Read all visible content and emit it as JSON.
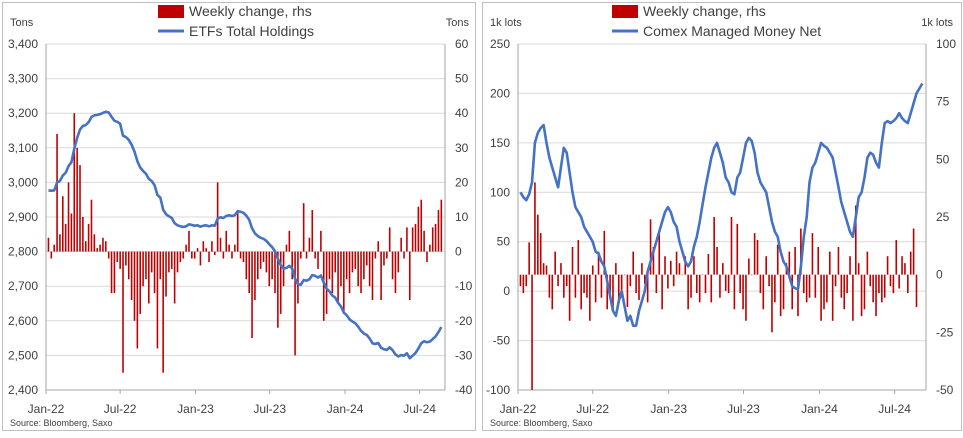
{
  "colors": {
    "bar": "#c00000",
    "line": "#4472c4",
    "grid": "#d9d9d9",
    "axis_text": "#404040",
    "border": "#bfbfbf"
  },
  "chart_data": [
    {
      "type": "bar+line",
      "left_unit": "Tons",
      "right_unit": "Tons",
      "legend": [
        "Weekly change, rhs",
        "ETFs Total Holdings"
      ],
      "source": "Source:  Bloomberg,  Saxo",
      "x_tick_labels": [
        "Jan-22",
        "Jul-22",
        "Jan-23",
        "Jul-23",
        "Jan-24",
        "Jul-24"
      ],
      "ylim_left": [
        2400,
        3400
      ],
      "ylim_right": [
        -40,
        60
      ],
      "yticks_left": [
        "2,400",
        "2,500",
        "2,600",
        "2,700",
        "2,800",
        "2,900",
        "3,000",
        "3,100",
        "3,200",
        "3,300",
        "3,400"
      ],
      "yticks_right": [
        "-40",
        "-30",
        "-20",
        "-10",
        "0",
        "10",
        "20",
        "30",
        "40",
        "50",
        "60"
      ],
      "grid": "horizontal",
      "legend_position": "top-center",
      "x_start": "2022-01-07",
      "x_step_days": 7,
      "series": [
        {
          "name": "Weekly change, rhs",
          "axis": "right",
          "kind": "bar",
          "values": [
            4,
            -2,
            2,
            34,
            5,
            16,
            8,
            20,
            11,
            40,
            30,
            25,
            10,
            3,
            8,
            15,
            5,
            1,
            2,
            4,
            3,
            -2,
            -12,
            -12,
            -3,
            -5,
            -35,
            -4,
            -8,
            -14,
            -20,
            -28,
            -18,
            -10,
            -8,
            -15,
            -6,
            -12,
            -28,
            -8,
            -35,
            -13,
            -6,
            -5,
            -15,
            -6,
            -3,
            -2,
            2,
            6,
            -2,
            -2,
            1,
            -4,
            3,
            1,
            -3,
            3,
            -1,
            20,
            4,
            -2,
            6,
            2,
            -2,
            2,
            12,
            -2,
            -3,
            -8,
            -12,
            -25,
            -14,
            -8,
            -5,
            -3,
            -6,
            -10,
            -8,
            -12,
            -22,
            -18,
            -10,
            2,
            6,
            -8,
            -30,
            -15,
            -2,
            14,
            -2,
            4,
            12,
            -2,
            -5,
            6,
            -20,
            -18,
            -8,
            -12,
            -6,
            -15,
            -10,
            -18,
            -8,
            -12,
            -6,
            -5,
            -10,
            -12,
            -8,
            -4,
            -10,
            -14,
            -2,
            3,
            -14,
            -4,
            -2,
            7,
            -8,
            -12,
            -6,
            4,
            -2,
            7,
            -14,
            7,
            8,
            13,
            15,
            6,
            -3,
            2,
            7,
            8,
            12,
            15
          ]
        },
        {
          "name": "ETFs Total Holdings",
          "axis": "left",
          "kind": "line",
          "values": [
            2977,
            2976,
            2977,
            3000,
            3004,
            3020,
            3028,
            3047,
            3058,
            3098,
            3128,
            3153,
            3163,
            3166,
            3174,
            3189,
            3194,
            3195,
            3197,
            3201,
            3204,
            3202,
            3190,
            3178,
            3175,
            3170,
            3135,
            3131,
            3123,
            3109,
            3089,
            3061,
            3043,
            3033,
            3025,
            3010,
            3004,
            2992,
            2964,
            2956,
            2921,
            2908,
            2902,
            2897,
            2882,
            2876,
            2873,
            2871,
            2873,
            2879,
            2877,
            2875,
            2876,
            2872,
            2875,
            2876,
            2873,
            2876,
            2875,
            2895,
            2899,
            2897,
            2903,
            2905,
            2903,
            2905,
            2917,
            2915,
            2912,
            2904,
            2892,
            2867,
            2853,
            2845,
            2840,
            2837,
            2831,
            2821,
            2813,
            2801,
            2779,
            2761,
            2751,
            2753,
            2759,
            2751,
            2721,
            2706,
            2704,
            2718,
            2716,
            2720,
            2732,
            2730,
            2725,
            2731,
            2711,
            2693,
            2685,
            2673,
            2667,
            2652,
            2642,
            2624,
            2616,
            2604,
            2598,
            2593,
            2583,
            2571,
            2563,
            2559,
            2549,
            2535,
            2533,
            2536,
            2522,
            2518,
            2516,
            2523,
            2515,
            2503,
            2497,
            2501,
            2499,
            2506,
            2492,
            2499,
            2507,
            2520,
            2535,
            2541,
            2538,
            2540,
            2547,
            2555,
            2567,
            2582
          ]
        }
      ]
    },
    {
      "type": "bar+line",
      "left_unit": "1k lots",
      "right_unit": "1k lots",
      "legend": [
        "Weekly change, rhs",
        "Comex Managed Money Net"
      ],
      "source": "Source:  Bloomberg,  Saxo",
      "x_tick_labels": [
        "Jan-22",
        "Jul-22",
        "Jan-23",
        "Jul-23",
        "Jan-24",
        "Jul-24"
      ],
      "ylim_left": [
        -100,
        250
      ],
      "ylim_right": [
        -50,
        100
      ],
      "yticks_left": [
        "-100",
        "-50",
        "0",
        "50",
        "100",
        "150",
        "200",
        "250"
      ],
      "yticks_right": [
        "-50",
        "-25",
        "0",
        "25",
        "50",
        "75",
        "100"
      ],
      "grid": "horizontal",
      "legend_position": "top-center",
      "x_start": "2022-01-07",
      "x_step_days": 7,
      "series": [
        {
          "name": "Weekly change, rhs",
          "axis": "right",
          "kind": "bar",
          "values": [
            -5,
            -8,
            -5,
            14,
            -50,
            40,
            26,
            18,
            5,
            4,
            -10,
            -15,
            10,
            -5,
            5,
            -10,
            -5,
            -20,
            12,
            -10,
            15,
            -15,
            -8,
            -10,
            -20,
            4,
            -12,
            10,
            -10,
            19,
            -15,
            -8,
            -15,
            5,
            -12,
            -10,
            0,
            -14,
            -5,
            10,
            -8,
            -11,
            5,
            -4,
            -12,
            24,
            12,
            -8,
            18,
            -15,
            8,
            -6,
            6,
            -5,
            10,
            5,
            0,
            8,
            -15,
            -10,
            8,
            -8,
            -12,
            0,
            -8,
            9,
            -12,
            25,
            12,
            -10,
            5,
            -7,
            -8,
            25,
            -15,
            22,
            -8,
            -15,
            -20,
            7,
            0,
            18,
            15,
            -8,
            -15,
            8,
            -5,
            -25,
            -12,
            13,
            -18,
            -15,
            5,
            10,
            -15,
            12,
            -18,
            20,
            -8,
            -12,
            -10,
            18,
            -10,
            12,
            -20,
            -15,
            -12,
            10,
            -20,
            -5,
            12,
            -10,
            -15,
            -8,
            8,
            -20,
            30,
            5,
            -18,
            -15,
            10,
            -5,
            -12,
            -18,
            -8,
            -12,
            -10,
            8,
            -5,
            -8,
            15,
            -6,
            8,
            5,
            -8,
            10,
            20,
            -14
          ]
        },
        {
          "name": "Comex Managed Money Net",
          "axis": "left",
          "kind": "line",
          "values": [
            100,
            95,
            92,
            98,
            110,
            150,
            160,
            165,
            168,
            150,
            135,
            125,
            115,
            105,
            125,
            145,
            140,
            120,
            100,
            85,
            80,
            75,
            65,
            60,
            55,
            50,
            40,
            38,
            30,
            25,
            10,
            -5,
            -20,
            -25,
            -10,
            0,
            -15,
            -30,
            -25,
            -35,
            -35,
            -20,
            -10,
            0,
            20,
            30,
            40,
            50,
            60,
            70,
            80,
            85,
            80,
            70,
            65,
            50,
            40,
            30,
            25,
            30,
            45,
            55,
            70,
            88,
            105,
            120,
            135,
            145,
            150,
            140,
            130,
            115,
            110,
            100,
            98,
            115,
            120,
            135,
            150,
            155,
            152,
            140,
            120,
            110,
            105,
            100,
            85,
            70,
            60,
            55,
            40,
            30,
            25,
            15,
            5,
            3,
            2,
            25,
            55,
            75,
            110,
            125,
            130,
            140,
            150,
            147,
            145,
            140,
            135,
            120,
            105,
            90,
            80,
            70,
            60,
            55,
            75,
            95,
            100,
            115,
            135,
            140,
            138,
            130,
            125,
            150,
            170,
            172,
            170,
            172,
            175,
            180,
            175,
            172,
            170,
            180,
            190,
            200,
            205,
            210
          ]
        }
      ]
    }
  ]
}
